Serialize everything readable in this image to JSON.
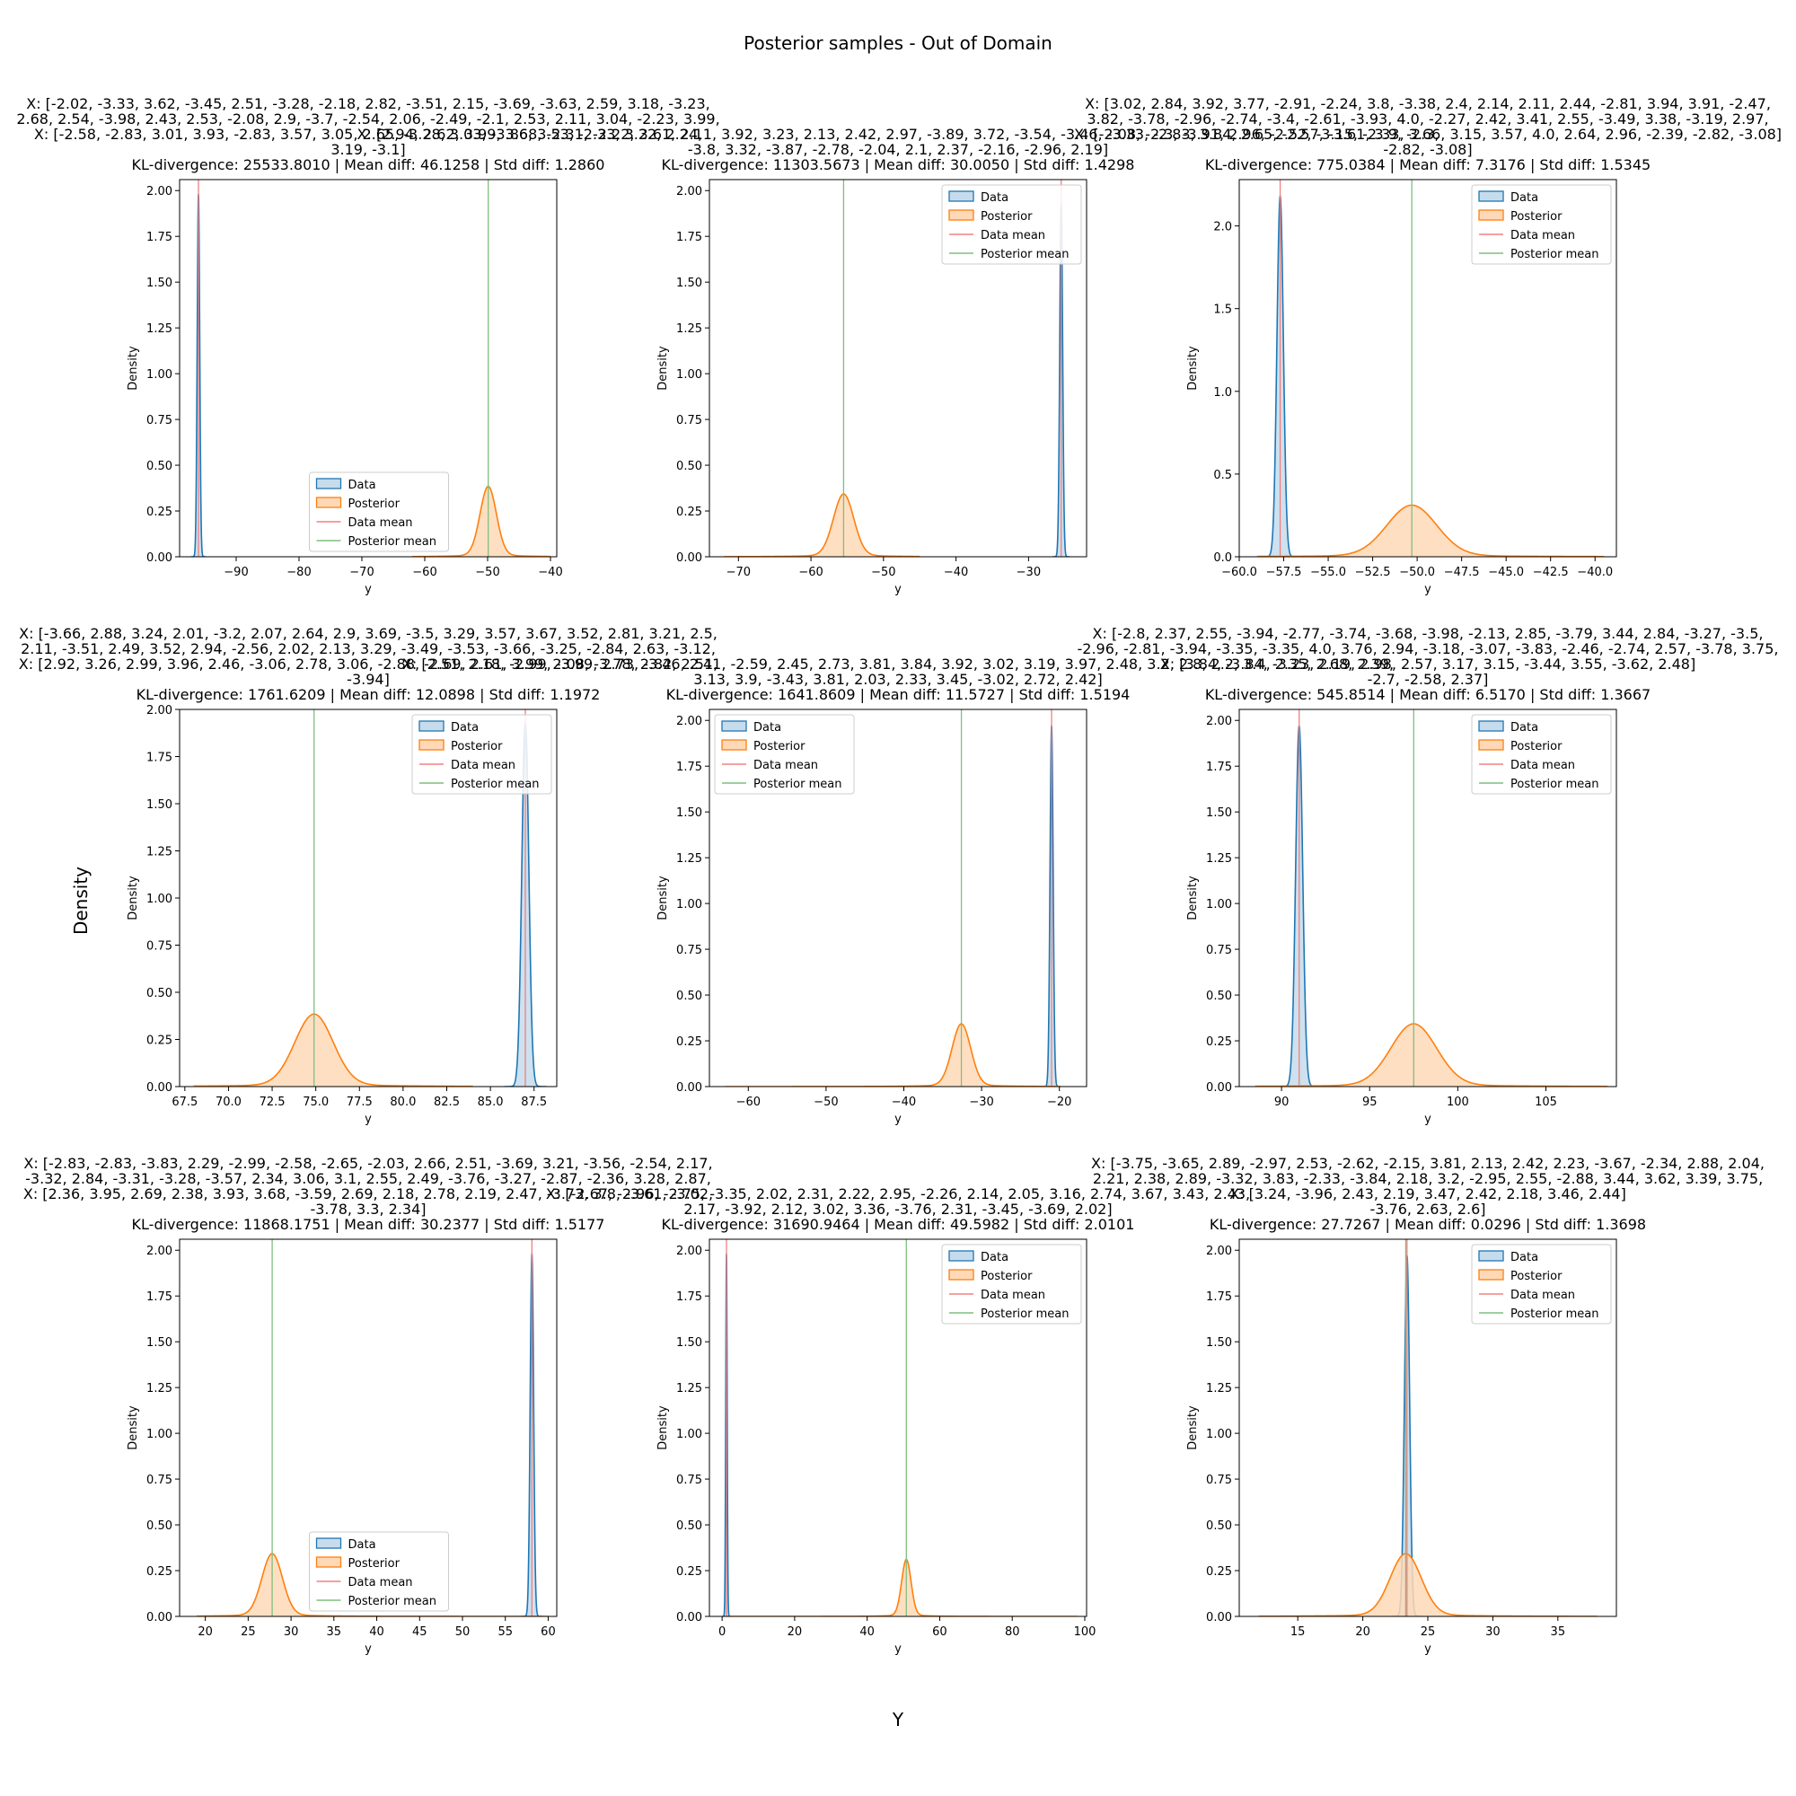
{
  "figure": {
    "suptitle": "Posterior samples - Out of Domain",
    "supxlabel": "Y",
    "supylabel": "Density"
  },
  "legend_labels": [
    "Data",
    "Posterior",
    "Data mean",
    "Posterior mean"
  ],
  "colors": {
    "data": "#1f77b4",
    "data_fill": "#c6dcec",
    "posterior": "#ff7f0e",
    "posterior_fill": "#ffd9b7",
    "data_mean": "#f08080",
    "posterior_mean": "#7fbf7f"
  },
  "chart_data": [
    {
      "type": "area",
      "title_lines": [
        "X: [-2.02, -3.33, 3.62, -3.45, 2.51, -3.28, -2.18, 2.82, -3.51, 2.15, -3.69, -3.63, 2.59, 3.18, -3.23,",
        "2.68, 2.54, -3.98, 2.43, 2.53, -2.08, 2.9, -3.7, -2.54, 2.06, -2.49, -2.1, 2.53, 2.11, 3.04, -2.23, 3.99,",
        "X: [-2.58, -2.83, 3.01, 3.93, -2.83, 3.57, 3.05, 2.65, -3.28, 3.03, -3.86, 3.53, -2.33, 3.22, 2.24,",
        "3.19, -3.1]"
      ],
      "stats": "KL-divergence: 25533.8010 | Mean diff: 46.1258 | Std diff: 1.2860",
      "xlabel": "y",
      "ylabel": "Density",
      "xlim": [
        -99,
        -39
      ],
      "ylim": [
        0,
        2.06
      ],
      "xticks": [
        -90,
        -80,
        -70,
        -60,
        -50,
        -40
      ],
      "yticks": [
        "0.00",
        "0.25",
        "0.50",
        "0.75",
        "1.00",
        "1.25",
        "1.50",
        "1.75",
        "2.00"
      ],
      "legend_position": "lower-center",
      "series": [
        {
          "name": "Data",
          "mean": -96.0,
          "std": 0.2,
          "peak": 1.98
        },
        {
          "name": "Posterior",
          "mean": -49.9,
          "std": 1.3,
          "peak": 0.37,
          "tail_min": -62,
          "tail_max": -40
        }
      ],
      "data_mean": -96.0,
      "posterior_mean": -49.9
    },
    {
      "type": "area",
      "title_lines": [
        "X: [2.94, 2.62, 3.99, 3.68, -2.31, -2.22, 3.61, 2.11, 3.92, 3.23, 2.13, 2.42, 2.97, -3.89, 3.72, -3.54, -3.46, -3.33, -2.83, 3.84, 2.65, -2.57, -3.61, 3.9, -2.3,",
        "-3.8, 3.32, -3.87, -2.78, -2.04, 2.1, 2.37, -2.16, -2.96, 2.19]"
      ],
      "stats": "KL-divergence: 11303.5673 | Mean diff: 30.0050 | Std diff: 1.4298",
      "xlabel": "y",
      "ylabel": "Density",
      "xlim": [
        -74,
        -22
      ],
      "ylim": [
        0,
        2.06
      ],
      "xticks": [
        -70,
        -60,
        -50,
        -40,
        -30
      ],
      "yticks": [
        "0.00",
        "0.25",
        "0.50",
        "0.75",
        "1.00",
        "1.25",
        "1.50",
        "1.75",
        "2.00"
      ],
      "legend_position": "top-right",
      "series": [
        {
          "name": "Data",
          "mean": -25.5,
          "std": 0.2,
          "peak": 1.93
        },
        {
          "name": "Posterior",
          "mean": -55.5,
          "std": 1.4,
          "peak": 0.33,
          "tail_min": -72,
          "tail_max": -45
        }
      ],
      "data_mean": -25.5,
      "posterior_mean": -55.5
    },
    {
      "type": "area",
      "title_lines": [
        "X: [3.02, 2.84, 3.92, 3.77, -2.91, -2.24, 3.8, -3.38, 2.4, 2.14, 2.11, 2.44, -2.81, 3.94, 3.91, -2.47,",
        "3.82, -3.78, -2.96, -2.74, -3.4, -2.61, -3.93, 4.0, -2.27, 2.42, 3.41, 2.55, -3.49, 3.38, -3.19, 2.97,",
        "X: [-2.08, -2.3, -3.91, 2.96, -2.52, -3.15, -2.33, 3.66, 3.15, 3.57, 4.0, 2.64, 2.96, -2.39, -2.82, -3.08]",
        "-2.82, -3.08]"
      ],
      "stats": "KL-divergence: 775.0384 | Mean diff: 7.3176 | Std diff: 1.5345",
      "xlabel": "y",
      "ylabel": "Density",
      "xlim": [
        -60,
        -38.8
      ],
      "ylim": [
        0,
        2.28
      ],
      "xticks": [
        "-60.0",
        "-57.5",
        "-55.0",
        "-52.5",
        "-50.0",
        "-47.5",
        "-45.0",
        "-42.5",
        "-40.0"
      ],
      "ytick_values": [
        0,
        0.5,
        1.0,
        1.5,
        2.0
      ],
      "yticks": [
        "0.0",
        "0.5",
        "1.0",
        "1.5",
        "2.0"
      ],
      "legend_position": "top-right",
      "series": [
        {
          "name": "Data",
          "mean": -57.7,
          "std": 0.18,
          "peak": 2.18
        },
        {
          "name": "Posterior",
          "mean": -50.3,
          "std": 1.4,
          "peak": 0.3,
          "tail_min": -59,
          "tail_max": -39.5
        }
      ],
      "data_mean": -57.7,
      "posterior_mean": -50.3
    },
    {
      "type": "area",
      "title_lines": [
        "X: [-3.66, 2.88, 3.24, 2.01, -3.2, 2.07, 2.64, 2.9, 3.69, -3.5, 3.29, 3.57, 3.67, 3.52, 2.81, 3.21, 2.5,",
        "2.11, -3.51, 2.49, 3.52, 2.94, -2.56, 2.02, 2.13, 3.29, -3.49, -3.53, -3.66, -3.25, -2.84, 2.63, -3.12,",
        "X: [2.92, 3.26, 2.99, 3.96, 2.46, -3.06, 2.78, 3.06, -2.88, -2.69, 2.61, 3.99, 2.08, -3.78, 2.82, 2.51,",
        "-3.94]"
      ],
      "stats": "KL-divergence: 1761.6209 | Mean diff: 12.0898 | Std diff: 1.1972",
      "xlabel": "y",
      "ylabel": "Density",
      "xlim": [
        67.2,
        88.8
      ],
      "ylim": [
        0,
        2.0
      ],
      "xticks": [
        "67.5",
        "70.0",
        "72.5",
        "75.0",
        "77.5",
        "80.0",
        "82.5",
        "85.0",
        "87.5"
      ],
      "yticks": [
        "0.00",
        "0.25",
        "0.50",
        "0.75",
        "1.00",
        "1.25",
        "1.50",
        "1.75",
        "2.00"
      ],
      "legend_position": "top-right",
      "series": [
        {
          "name": "Data",
          "mean": 87.0,
          "std": 0.2,
          "peak": 1.93
        },
        {
          "name": "Posterior",
          "mean": 74.9,
          "std": 1.1,
          "peak": 0.37,
          "tail_min": 68,
          "tail_max": 84
        }
      ],
      "data_mean": 87.0,
      "posterior_mean": 74.9
    },
    {
      "type": "area",
      "title_lines": [
        "X: [2.51, 2.18, -2.99, -3.99, 2.73, -3.46, 2.41, -2.59, 2.45, 2.73, 3.81, 3.84, 3.92, 3.02, 3.19, 3.97, 2.48, 3.2, 2.8, 2.2, 3.4, 2.35, 2.68, 2.39,",
        "3.13, 3.9, -3.43, 3.81, 2.03, 2.33, 3.45, -3.02, 2.72, 2.42]"
      ],
      "stats": "KL-divergence: 1641.8609 | Mean diff: 11.5727 | Std diff: 1.5194",
      "xlabel": "y",
      "ylabel": "Density",
      "xlim": [
        -65,
        -16.5
      ],
      "ylim": [
        0,
        2.06
      ],
      "xticks": [
        -60,
        -50,
        -40,
        -30,
        -20
      ],
      "yticks": [
        "0.00",
        "0.25",
        "0.50",
        "0.75",
        "1.00",
        "1.25",
        "1.50",
        "1.75",
        "2.00"
      ],
      "legend_position": "top-left",
      "series": [
        {
          "name": "Data",
          "mean": -21.0,
          "std": 0.2,
          "peak": 1.97
        },
        {
          "name": "Posterior",
          "mean": -32.6,
          "std": 1.2,
          "peak": 0.33,
          "tail_min": -63,
          "tail_max": -20
        }
      ],
      "data_mean": -21.0,
      "posterior_mean": -32.6
    },
    {
      "type": "area",
      "title_lines": [
        "X: [-2.8, 2.37, 2.55, -3.94, -2.77, -3.74, -3.68, -3.98, -2.13, 2.85, -3.79, 3.44, 2.84, -3.27, -3.5,",
        "-2.96, -2.81, -3.94, -3.35, -3.35, 4.0, 3.76, 2.94, -3.18, -3.07, -3.83, -2.46, -2.74, 2.57, -3.78, 3.75,",
        "X: [3.84, -3.84, -3.23, 2.19, 2.98, 2.57, 3.17, 3.15, -3.44, 3.55, -3.62, 2.48]",
        "-2.7, -2.58, 2.37]"
      ],
      "stats": "KL-divergence: 545.8514 | Mean diff: 6.5170 | Std diff: 1.3667",
      "xlabel": "y",
      "ylabel": "Density",
      "xlim": [
        87.6,
        109.0
      ],
      "ylim": [
        0,
        2.06
      ],
      "xticks": [
        90,
        95,
        100,
        105
      ],
      "yticks": [
        "0.00",
        "0.25",
        "0.50",
        "0.75",
        "1.00",
        "1.25",
        "1.50",
        "1.75",
        "2.00"
      ],
      "legend_position": "top-right",
      "series": [
        {
          "name": "Data",
          "mean": 91.0,
          "std": 0.2,
          "peak": 1.97
        },
        {
          "name": "Posterior",
          "mean": 97.5,
          "std": 1.3,
          "peak": 0.33,
          "tail_min": 88.5,
          "tail_max": 108.5
        }
      ],
      "data_mean": 91.0,
      "posterior_mean": 97.5
    },
    {
      "type": "area",
      "title_lines": [
        "X: [-2.83, -2.83, -3.83, 2.29, -2.99, -2.58, -2.65, -2.03, 2.66, 2.51, -3.69, 3.21, -3.56, -2.54, 2.17,",
        "-3.32, 2.84, -3.31, -3.28, -3.57, 2.34, 3.06, 3.1, 2.55, 2.49, -3.76, -3.27, -2.87, -2.36, 3.28, 2.87,",
        "X: [2.36, 3.95, 2.69, 2.38, 3.93, 3.68, -3.59, 2.69, 2.18, 2.78, 2.19, 2.47, -3.73, 3.8, -3.61, -3.02,",
        "-3.78, 3.3, 2.34]"
      ],
      "stats": "KL-divergence: 11868.1751 | Mean diff: 30.2377 | Std diff: 1.5177",
      "xlabel": "y",
      "ylabel": "Density",
      "xlim": [
        17.0,
        61.0
      ],
      "ylim": [
        0,
        2.06
      ],
      "xticks": [
        20,
        25,
        30,
        35,
        40,
        45,
        50,
        55,
        60
      ],
      "yticks": [
        "0.00",
        "0.25",
        "0.50",
        "0.75",
        "1.00",
        "1.25",
        "1.50",
        "1.75",
        "2.00"
      ],
      "legend_position": "lower-center",
      "series": [
        {
          "name": "Data",
          "mean": 58.1,
          "std": 0.2,
          "peak": 1.98
        },
        {
          "name": "Posterior",
          "mean": 27.8,
          "std": 1.2,
          "peak": 0.33,
          "tail_min": 19,
          "tail_max": 60
        }
      ],
      "data_mean": 58.1,
      "posterior_mean": 27.8
    },
    {
      "type": "area",
      "title_lines": [
        "X: [-2.67, -2.96, -2.75, -3.35, 2.02, 2.31, 2.22, 2.95, -2.26, 2.14, 2.05, 3.16, 2.74, 3.67, 3.43, 2.43,",
        "2.17, -3.92, 2.12, 3.02, 3.36, -3.76, 2.31, -3.45, -3.69, 2.02]"
      ],
      "stats": "KL-divergence: 31690.9464 | Mean diff: 49.5982 | Std diff: 2.0101",
      "xlabel": "y",
      "ylabel": "Density",
      "xlim": [
        -3.5,
        100.5
      ],
      "ylim": [
        0,
        2.06
      ],
      "xticks": [
        0,
        20,
        40,
        60,
        80,
        100
      ],
      "yticks": [
        "0.00",
        "0.25",
        "0.50",
        "0.75",
        "1.00",
        "1.25",
        "1.50",
        "1.75",
        "2.00"
      ],
      "legend_position": "top-right",
      "series": [
        {
          "name": "Data",
          "mean": 1.2,
          "std": 0.2,
          "peak": 1.98
        },
        {
          "name": "Posterior",
          "mean": 50.8,
          "std": 1.3,
          "peak": 0.3,
          "tail_min": 1,
          "tail_max": 98
        }
      ],
      "data_mean": 1.2,
      "posterior_mean": 50.8
    },
    {
      "type": "area",
      "title_lines": [
        "X: [-3.75, -3.65, 2.89, -2.97, 2.53, -2.62, -2.15, 3.81, 2.13, 2.42, 2.23, -3.67, -2.34, 2.88, 2.04,",
        "2.21, 2.38, 2.89, -3.32, 3.83, -2.33, -3.84, 2.18, 3.2, -2.95, 2.55, -2.88, 3.44, 3.62, 3.39, 3.75,",
        "X: [3.24, -3.96, 2.43, 2.19, 3.47, 2.42, 2.18, 3.46, 2.44]",
        "-3.76, 2.63, 2.6]"
      ],
      "stats": "KL-divergence: 27.7267 | Mean diff: 0.0296 | Std diff: 1.3698",
      "xlabel": "y",
      "ylabel": "Density",
      "xlim": [
        10.5,
        39.5
      ],
      "ylim": [
        0,
        2.06
      ],
      "xticks": [
        15,
        20,
        25,
        30,
        35
      ],
      "yticks": [
        "0.00",
        "0.25",
        "0.50",
        "0.75",
        "1.00",
        "1.25",
        "1.50",
        "1.75",
        "2.00"
      ],
      "legend_position": "top-right",
      "series": [
        {
          "name": "Data",
          "mean": 23.4,
          "std": 0.2,
          "peak": 1.97
        },
        {
          "name": "Posterior",
          "mean": 23.3,
          "std": 1.2,
          "peak": 0.33,
          "tail_min": 12,
          "tail_max": 38
        }
      ],
      "data_mean": 23.4,
      "posterior_mean": 23.3
    }
  ]
}
